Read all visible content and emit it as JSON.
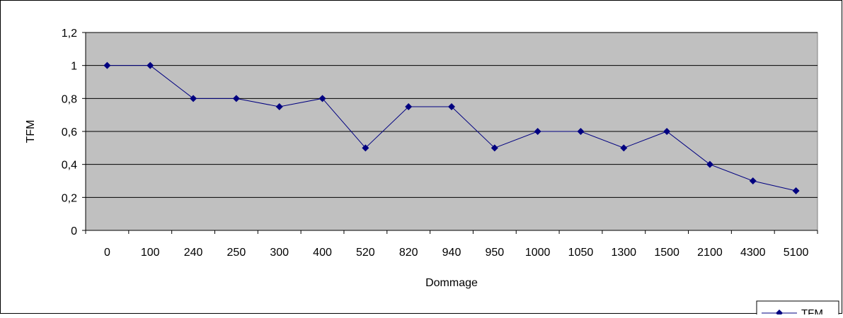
{
  "chart_data": {
    "type": "line",
    "categories": [
      "0",
      "100",
      "240",
      "250",
      "300",
      "400",
      "520",
      "820",
      "940",
      "950",
      "1000",
      "1050",
      "1300",
      "1500",
      "2100",
      "4300",
      "5100"
    ],
    "series": [
      {
        "name": "TFM",
        "values": [
          1.0,
          1.0,
          0.8,
          0.8,
          0.75,
          0.8,
          0.5,
          0.75,
          0.75,
          0.5,
          0.6,
          0.6,
          0.5,
          0.6,
          0.4,
          0.3,
          0.24
        ]
      }
    ],
    "xlabel": "Dommage",
    "ylabel": "TFM",
    "ylim": [
      0,
      1.2
    ],
    "yticks": [
      0,
      0.2,
      0.4,
      0.6,
      0.8,
      1.0,
      1.2
    ],
    "ytick_labels": [
      "0",
      "0,2",
      "0,4",
      "0,6",
      "0,8",
      "1",
      "1,2"
    ],
    "grid": true,
    "legend_position": "bottom-right",
    "colors": {
      "plot_background": "#C0C0C0",
      "series_line": "#000080",
      "gridline": "#000000"
    },
    "marker": "diamond"
  }
}
